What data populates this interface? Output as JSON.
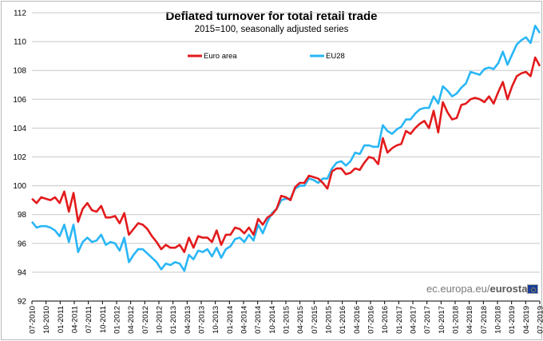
{
  "header": {
    "title": "Deflated turnover for total retail trade",
    "subtitle": "2015=100, seasonally adjusted series"
  },
  "watermark": {
    "prefix": "ec.europa.eu/",
    "brand": "eurostat"
  },
  "colors": {
    "euro_area": "#e31a1c",
    "eu28": "#29b6f6",
    "grid": "#c8c8c8"
  },
  "chart_data": {
    "type": "line",
    "title": "Deflated turnover for total retail trade",
    "subtitle": "2015=100, seasonally adjusted series",
    "xlabel": "",
    "ylabel": "",
    "ylim": [
      92,
      112
    ],
    "yticks": [
      92,
      94,
      96,
      98,
      100,
      102,
      104,
      106,
      108,
      110,
      112
    ],
    "grid": "horizontal",
    "legend": "top",
    "x_start": "07-2010",
    "x_end": "07-2019",
    "xticks": [
      "07-2010",
      "10-2010",
      "01-2011",
      "04-2011",
      "07-2011",
      "10-2011",
      "01-2012",
      "04-2012",
      "07-2012",
      "10-2012",
      "01-2013",
      "04-2013",
      "07-2013",
      "10-2013",
      "01-2014",
      "04-2014",
      "07-2014",
      "10-2014",
      "01-2015",
      "04-2015",
      "07-2015",
      "10-2015",
      "01-2016",
      "04-2016",
      "07-2016",
      "10-2016",
      "01-2017",
      "04-2017",
      "07-2017",
      "10-2017",
      "01-2018",
      "04-2018",
      "07-2018",
      "10-2018",
      "01-2019",
      "04-2019",
      "07-2019"
    ],
    "series": [
      {
        "name": "Euro area",
        "color": "#e31a1c",
        "values": [
          99.1,
          98.8,
          99.2,
          99.1,
          99.0,
          99.2,
          98.8,
          99.6,
          98.2,
          99.5,
          97.5,
          98.4,
          98.8,
          98.3,
          98.2,
          98.6,
          97.8,
          97.8,
          97.9,
          97.4,
          98.1,
          96.6,
          97.0,
          97.4,
          97.3,
          97.0,
          96.5,
          96.1,
          95.6,
          95.9,
          95.7,
          95.7,
          95.9,
          95.4,
          96.4,
          95.7,
          96.5,
          96.4,
          96.4,
          96.1,
          96.9,
          95.9,
          96.6,
          96.6,
          97.1,
          97.0,
          96.7,
          97.1,
          96.6,
          97.7,
          97.3,
          97.8,
          98.0,
          98.4,
          99.3,
          99.2,
          99.0,
          99.9,
          100.2,
          100.2,
          100.7,
          100.6,
          100.5,
          100.2,
          99.8,
          101.0,
          101.2,
          101.2,
          100.8,
          100.9,
          101.2,
          101.1,
          101.6,
          102.0,
          101.9,
          101.5,
          103.3,
          102.3,
          102.6,
          102.8,
          102.9,
          103.8,
          103.6,
          104.0,
          104.3,
          104.5,
          104.0,
          105.2,
          103.7,
          105.8,
          105.1,
          104.6,
          104.7,
          105.6,
          105.7,
          106.0,
          106.1,
          106.0,
          105.8,
          106.2,
          105.7,
          106.5,
          107.2,
          106.0,
          106.9,
          107.6,
          107.8,
          107.9,
          107.6,
          108.9,
          108.3
        ]
      },
      {
        "name": "EU28",
        "color": "#29b6f6",
        "values": [
          97.5,
          97.1,
          97.2,
          97.2,
          97.1,
          96.9,
          96.5,
          97.3,
          96.1,
          97.3,
          95.4,
          96.1,
          96.4,
          96.1,
          96.2,
          96.6,
          95.9,
          96.1,
          96.0,
          95.5,
          96.4,
          94.7,
          95.2,
          95.6,
          95.6,
          95.3,
          95.0,
          94.7,
          94.2,
          94.6,
          94.5,
          94.7,
          94.6,
          94.1,
          95.2,
          94.9,
          95.5,
          95.4,
          95.6,
          95.1,
          95.7,
          95.0,
          95.6,
          95.8,
          96.3,
          96.4,
          96.1,
          96.6,
          96.2,
          97.3,
          96.7,
          97.5,
          98.1,
          98.4,
          99.0,
          99.1,
          99.1,
          99.8,
          100.0,
          100.0,
          100.5,
          100.4,
          100.2,
          100.5,
          100.5,
          101.2,
          101.6,
          101.7,
          101.4,
          101.7,
          102.3,
          102.2,
          102.8,
          102.8,
          102.7,
          102.7,
          104.2,
          103.8,
          103.6,
          103.9,
          104.1,
          104.6,
          104.6,
          105.0,
          105.3,
          105.4,
          105.4,
          106.2,
          105.7,
          106.9,
          106.6,
          106.2,
          106.4,
          106.8,
          107.1,
          107.9,
          107.8,
          107.7,
          108.1,
          108.2,
          108.1,
          108.5,
          109.3,
          108.4,
          109.1,
          109.8,
          110.1,
          110.3,
          109.9,
          111.1,
          110.6
        ]
      }
    ]
  }
}
